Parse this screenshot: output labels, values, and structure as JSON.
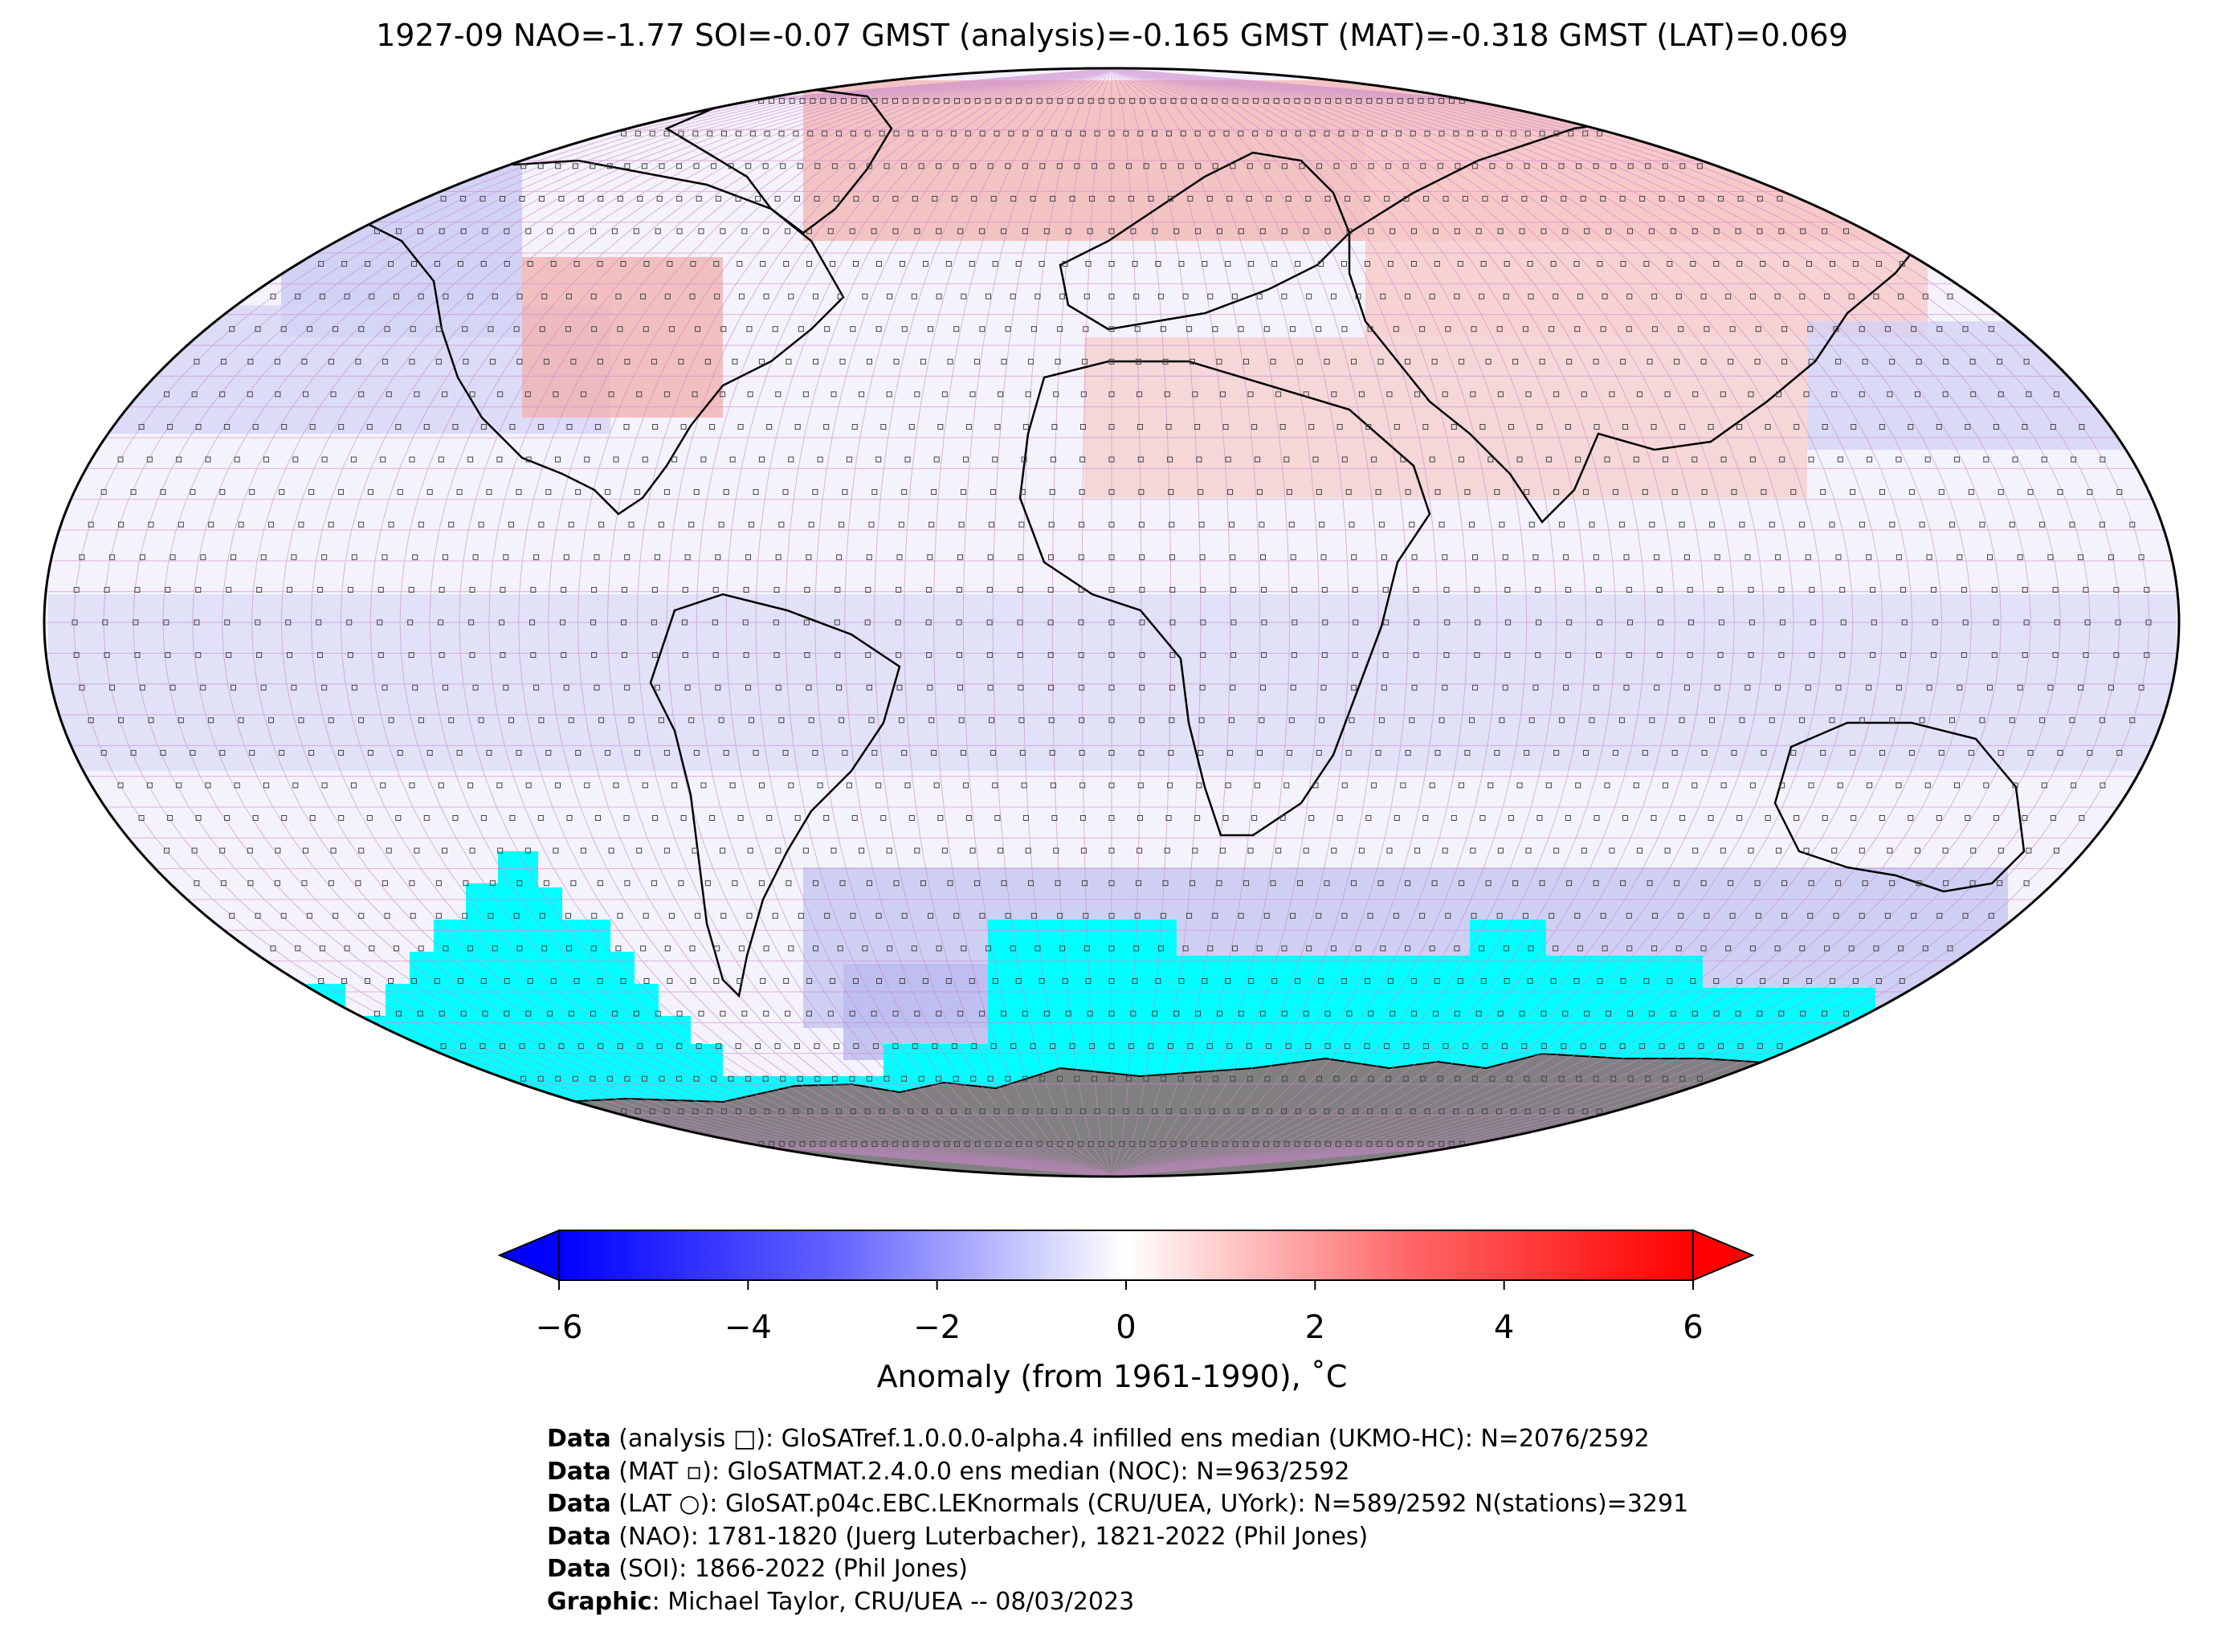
{
  "title": "1927-09 NAO=-1.77 SOI=-0.07 GMST (analysis)=-0.165 GMST (MAT)=-0.318 GMST (LAT)=0.069",
  "colors": {
    "ocean_missing": "#00ffff",
    "antarctica": "#808080",
    "grid": "#cc88cc",
    "cmap_low": "#0000ff",
    "cmap_mid": "#ffffff",
    "cmap_high": "#ff0000"
  },
  "colorbar": {
    "ticks": [
      "−6",
      "−4",
      "−2",
      "0",
      "2",
      "4",
      "6"
    ],
    "range": [
      -6,
      6
    ],
    "label": "Anomaly (from 1961-1990), ˚C"
  },
  "credits": [
    {
      "key": "Data",
      "text": " (analysis □): GloSATref.1.0.0.0-alpha.4 infilled ens median (UKMO-HC): N=2076/2592"
    },
    {
      "key": "Data",
      "text": " (MAT ▫): GloSATMAT.2.4.0.0 ens median (NOC): N=963/2592"
    },
    {
      "key": "Data",
      "text": " (LAT ○): GloSAT.p04c.EBC.LEKnormals (CRU/UEA, UYork): N=589/2592 N(stations)=3291"
    },
    {
      "key": "Data",
      "text": " (NAO): 1781-1820 (Juerg Luterbacher), 1821-2022 (Phil Jones)"
    },
    {
      "key": "Data",
      "text": " (SOI): 1866-2022 (Phil Jones)"
    },
    {
      "key": "Graphic",
      "text": ": Michael Taylor, CRU/UEA -- 08/03/2023"
    }
  ]
}
